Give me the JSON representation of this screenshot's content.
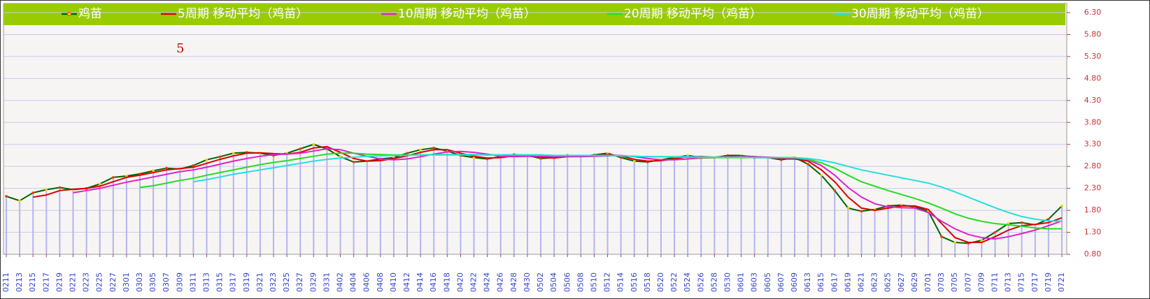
{
  "chart_data": {
    "type": "line",
    "annotation": "5",
    "categories": [
      "0211",
      "0213",
      "0215",
      "0217",
      "0219",
      "0221",
      "0223",
      "0225",
      "0227",
      "0301",
      "0303",
      "0305",
      "0307",
      "0309",
      "0311",
      "0313",
      "0315",
      "0317",
      "0319",
      "0321",
      "0323",
      "0325",
      "0327",
      "0329",
      "0331",
      "0402",
      "0404",
      "0406",
      "0408",
      "0410",
      "0412",
      "0414",
      "0416",
      "0418",
      "0420",
      "0422",
      "0424",
      "0426",
      "0428",
      "0430",
      "0502",
      "0504",
      "0506",
      "0508",
      "0510",
      "0512",
      "0514",
      "0516",
      "0518",
      "0520",
      "0522",
      "0524",
      "0526",
      "0528",
      "0530",
      "0601",
      "0603",
      "0605",
      "0607",
      "0609",
      "0613",
      "0615",
      "0617",
      "0619",
      "0621",
      "0623",
      "0625",
      "0627",
      "0629",
      "0701",
      "0703",
      "0705",
      "0707",
      "0709",
      "0711",
      "0713",
      "0715",
      "0717",
      "0719",
      "0721"
    ],
    "series": [
      {
        "name": "鸡苗",
        "color": "#006400",
        "bars": true,
        "values": [
          2.12,
          2.02,
          2.2,
          2.27,
          2.32,
          2.27,
          2.3,
          2.4,
          2.55,
          2.58,
          2.63,
          2.7,
          2.76,
          2.74,
          2.82,
          2.95,
          3.02,
          3.1,
          3.12,
          3.1,
          3.05,
          3.1,
          3.2,
          3.3,
          3.2,
          3.02,
          2.9,
          2.92,
          2.97,
          3.0,
          3.1,
          3.18,
          3.22,
          3.15,
          3.05,
          3.0,
          2.97,
          3.02,
          3.07,
          3.05,
          2.98,
          3.0,
          3.05,
          3.02,
          3.06,
          3.1,
          3.0,
          2.92,
          2.9,
          2.95,
          3.0,
          3.05,
          3.0,
          3.0,
          3.05,
          3.05,
          3.0,
          3.0,
          2.95,
          3.0,
          2.85,
          2.6,
          2.25,
          1.85,
          1.78,
          1.82,
          1.9,
          1.92,
          1.88,
          1.78,
          1.2,
          1.07,
          1.05,
          1.12,
          1.3,
          1.5,
          1.52,
          1.47,
          1.6,
          1.9
        ]
      },
      {
        "name": "5周期 移动平均（鸡苗）",
        "color": "#dd0000",
        "values": [
          null,
          null,
          2.1,
          2.15,
          2.25,
          2.28,
          2.3,
          2.35,
          2.45,
          2.55,
          2.6,
          2.66,
          2.72,
          2.75,
          2.78,
          2.87,
          2.96,
          3.04,
          3.1,
          3.11,
          3.09,
          3.08,
          3.12,
          3.22,
          3.25,
          3.12,
          2.98,
          2.92,
          2.93,
          2.98,
          3.04,
          3.12,
          3.18,
          3.18,
          3.1,
          3.03,
          2.99,
          3.0,
          3.04,
          3.05,
          3.01,
          2.99,
          3.02,
          3.03,
          3.04,
          3.07,
          3.04,
          2.96,
          2.92,
          2.93,
          2.97,
          3.02,
          3.02,
          3.01,
          3.03,
          3.04,
          3.02,
          3.0,
          2.97,
          2.97,
          2.92,
          2.72,
          2.45,
          2.1,
          1.85,
          1.8,
          1.85,
          1.9,
          1.9,
          1.82,
          1.5,
          1.18,
          1.07,
          1.07,
          1.2,
          1.35,
          1.45,
          1.48,
          1.52,
          1.63
        ]
      },
      {
        "name": "10周期 移动平均（鸡苗）",
        "color": "#dd22cc",
        "values": [
          null,
          null,
          null,
          null,
          null,
          2.2,
          2.25,
          2.3,
          2.37,
          2.44,
          2.5,
          2.56,
          2.62,
          2.68,
          2.72,
          2.78,
          2.85,
          2.92,
          2.98,
          3.03,
          3.07,
          3.08,
          3.1,
          3.15,
          3.2,
          3.18,
          3.1,
          3.03,
          2.97,
          2.95,
          2.97,
          3.02,
          3.08,
          3.13,
          3.14,
          3.12,
          3.08,
          3.03,
          3.02,
          3.03,
          3.03,
          3.02,
          3.02,
          3.02,
          3.03,
          3.04,
          3.05,
          3.02,
          2.98,
          2.95,
          2.95,
          2.97,
          2.99,
          3.0,
          3.01,
          3.02,
          3.02,
          3.01,
          3.0,
          2.99,
          2.95,
          2.82,
          2.6,
          2.32,
          2.1,
          1.95,
          1.88,
          1.86,
          1.85,
          1.75,
          1.55,
          1.38,
          1.25,
          1.18,
          1.15,
          1.2,
          1.27,
          1.35,
          1.45,
          1.56
        ]
      },
      {
        "name": "20周期 移动平均（鸡苗）",
        "color": "#22dd22",
        "values": [
          null,
          null,
          null,
          null,
          null,
          null,
          null,
          null,
          null,
          null,
          2.32,
          2.36,
          2.42,
          2.48,
          2.53,
          2.6,
          2.66,
          2.72,
          2.78,
          2.84,
          2.89,
          2.93,
          2.98,
          3.03,
          3.08,
          3.1,
          3.1,
          3.08,
          3.07,
          3.06,
          3.06,
          3.06,
          3.07,
          3.07,
          3.07,
          3.07,
          3.06,
          3.06,
          3.06,
          3.06,
          3.06,
          3.05,
          3.05,
          3.05,
          3.05,
          3.05,
          3.04,
          3.03,
          3.02,
          3.02,
          3.01,
          3.01,
          3.0,
          3.0,
          3.0,
          3.0,
          3.0,
          3.0,
          3.0,
          3.0,
          2.96,
          2.88,
          2.76,
          2.6,
          2.45,
          2.35,
          2.25,
          2.16,
          2.07,
          1.97,
          1.85,
          1.72,
          1.62,
          1.55,
          1.5,
          1.47,
          1.44,
          1.4,
          1.38,
          1.38
        ]
      },
      {
        "name": "30周期 移动平均（鸡苗）",
        "color": "#22e0e0",
        "values": [
          null,
          null,
          null,
          null,
          null,
          null,
          null,
          null,
          null,
          null,
          null,
          null,
          null,
          null,
          2.45,
          2.5,
          2.56,
          2.62,
          2.67,
          2.72,
          2.77,
          2.82,
          2.87,
          2.92,
          2.96,
          2.99,
          3.01,
          3.03,
          3.04,
          3.05,
          3.05,
          3.06,
          3.06,
          3.06,
          3.06,
          3.06,
          3.06,
          3.06,
          3.06,
          3.06,
          3.06,
          3.05,
          3.05,
          3.05,
          3.05,
          3.05,
          3.04,
          3.03,
          3.02,
          3.02,
          3.02,
          3.02,
          3.01,
          3.01,
          3.01,
          3.01,
          3.0,
          3.0,
          3.0,
          3.0,
          2.98,
          2.94,
          2.88,
          2.8,
          2.72,
          2.66,
          2.6,
          2.54,
          2.48,
          2.42,
          2.33,
          2.22,
          2.1,
          1.98,
          1.86,
          1.75,
          1.66,
          1.6,
          1.56,
          1.55
        ]
      }
    ],
    "ylim": [
      0.8,
      6.3
    ],
    "yticks": [
      {
        "value": 0.8,
        "label": "0.80"
      },
      {
        "value": 1.3,
        "label": "1.30"
      },
      {
        "value": 1.8,
        "label": "1.80"
      },
      {
        "value": 2.3,
        "label": "2.30"
      },
      {
        "value": 2.8,
        "label": "2.80"
      },
      {
        "value": 3.3,
        "label": "3.30"
      },
      {
        "value": 3.8,
        "label": "3.80"
      },
      {
        "value": 4.3,
        "label": "4.30"
      },
      {
        "value": 4.8,
        "label": "4.80"
      },
      {
        "value": 5.3,
        "label": "5.30"
      },
      {
        "value": 5.8,
        "label": "5.80"
      },
      {
        "value": 6.3,
        "label": "6.30"
      }
    ],
    "grid": true,
    "legend": "top"
  }
}
